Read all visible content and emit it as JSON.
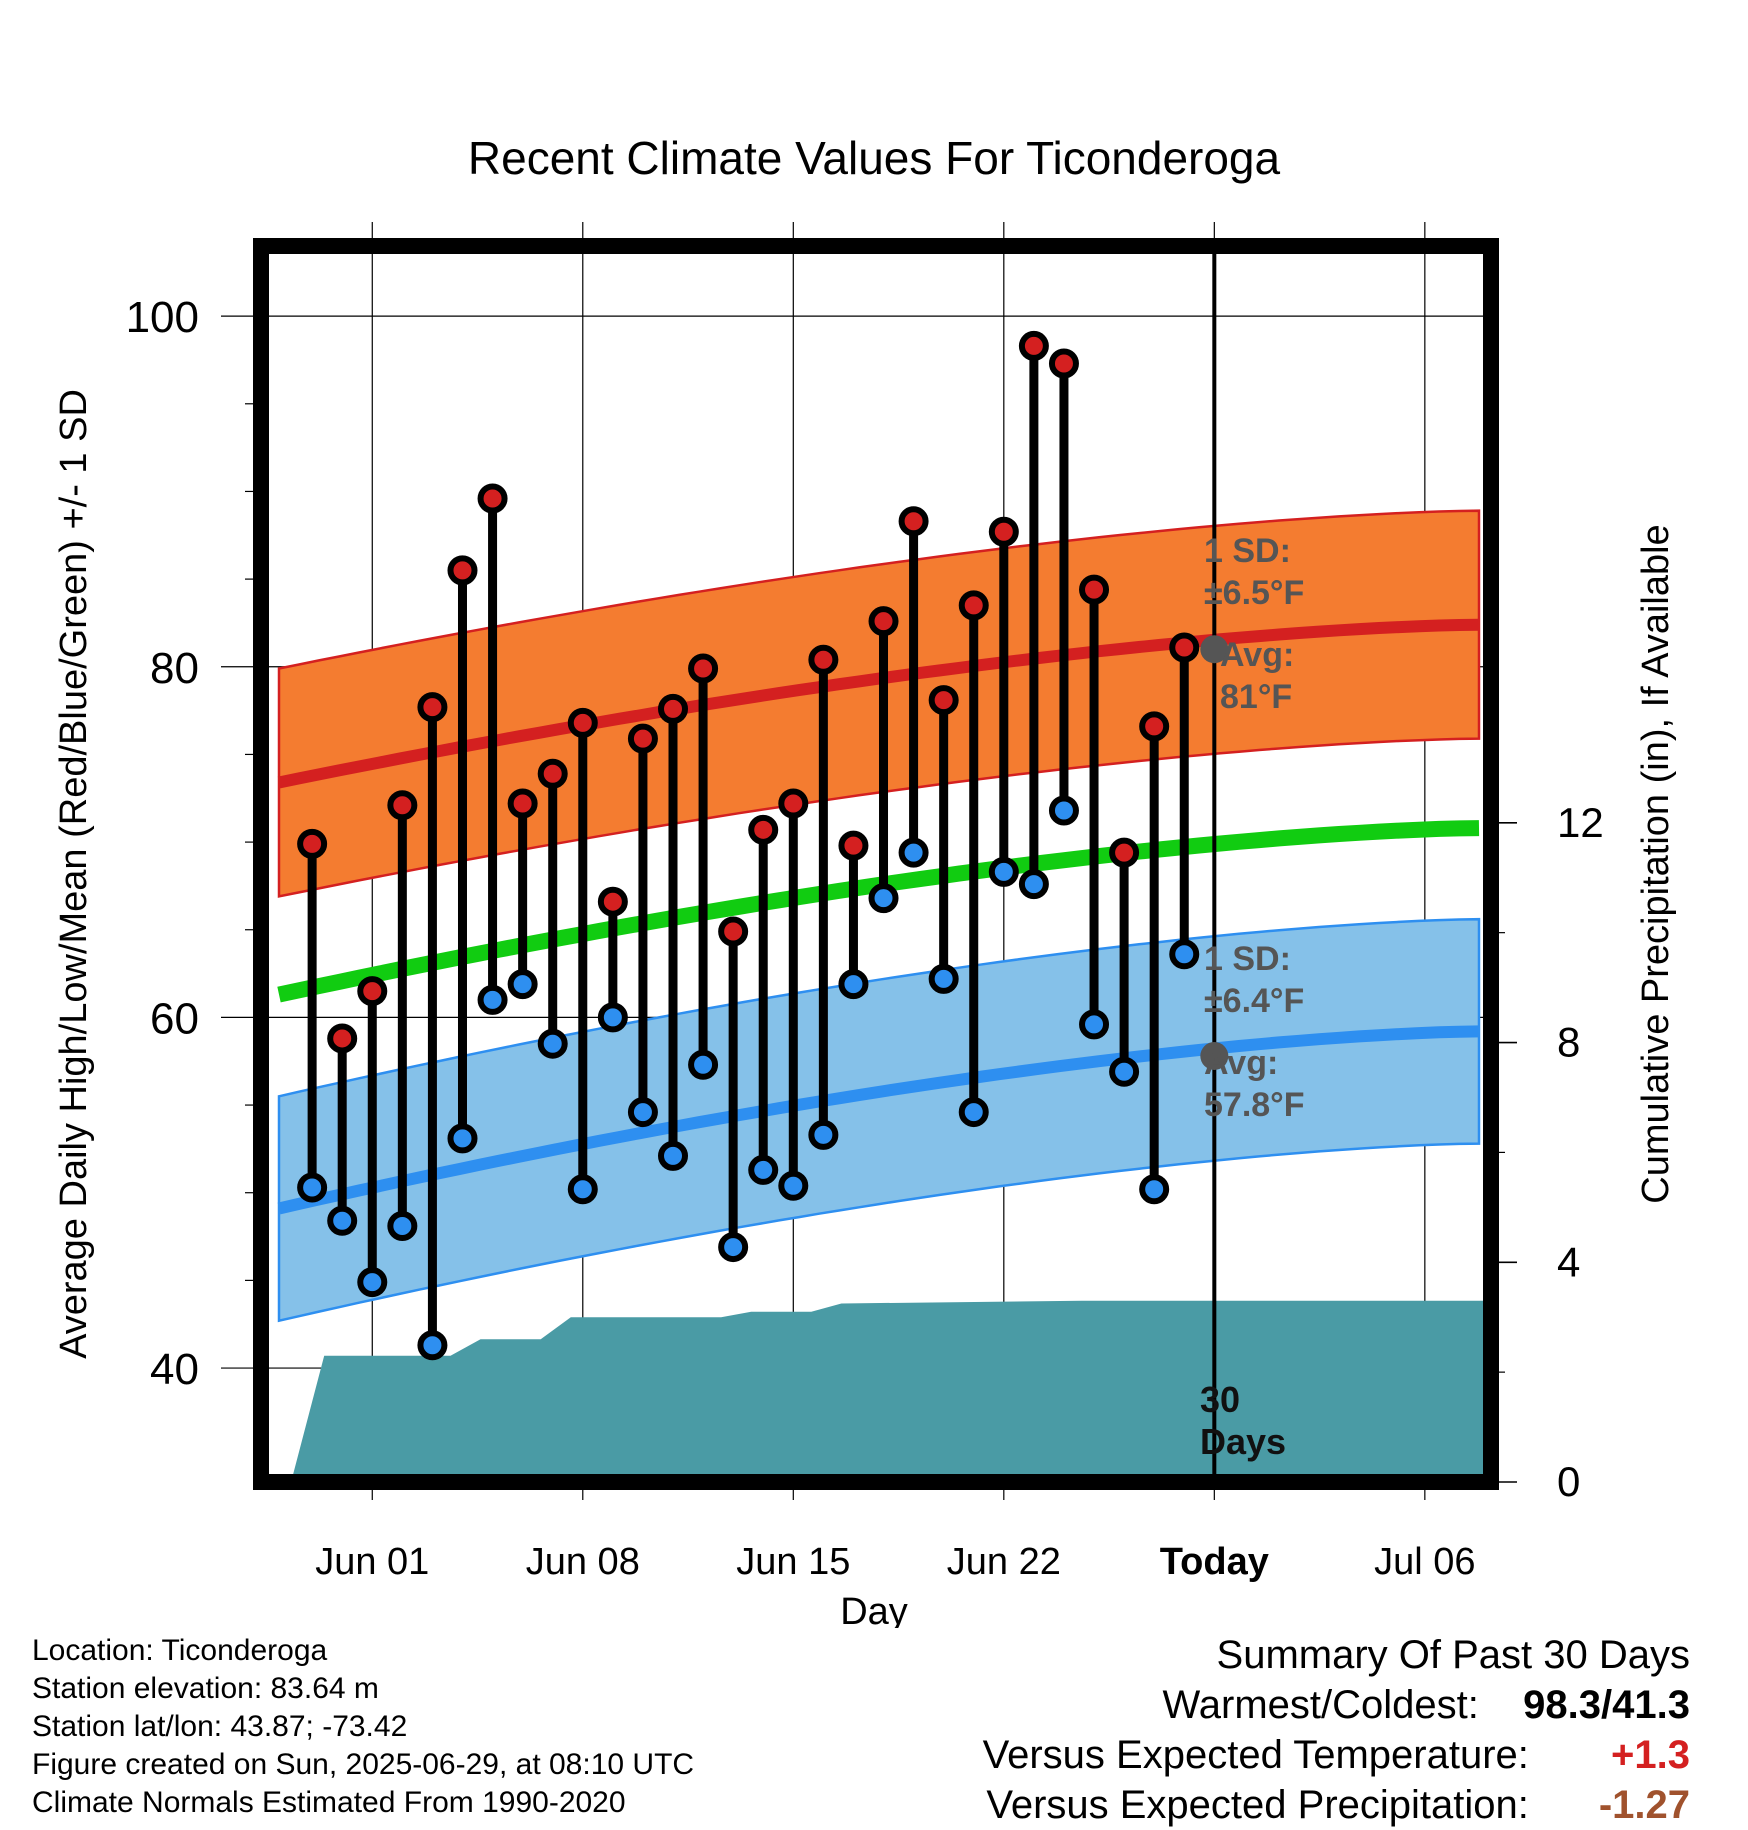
{
  "chart_data": {
    "type": "line",
    "title": "Recent Climate Values For Ticonderoga",
    "xlabel": "Day",
    "ylabel": "Average Daily High/Low/Mean (Red/Blue/Green) +/- 1 SD",
    "y2label": "Cumulative Precipitation (in), If Available",
    "ylim": [
      33.5,
      104
    ],
    "y2lim": [
      0,
      22.5
    ],
    "xlim": [
      -3.7,
      37.2
    ],
    "y_ticks": [
      100,
      80,
      60,
      40
    ],
    "y2_ticks": [
      12,
      8,
      4,
      0
    ],
    "x_tick_labels": [
      "Jun 01",
      "Jun 08",
      "Jun 15",
      "Jun 22",
      "Today",
      "Jul 06"
    ],
    "today_label": "Today",
    "grid": true,
    "days": [
      -2,
      -1,
      0,
      1,
      2,
      3,
      4,
      5,
      6,
      7,
      8,
      9,
      10,
      11,
      12,
      13,
      14,
      15,
      16,
      17,
      18,
      19,
      20,
      21,
      22,
      23,
      24,
      25,
      26,
      27
    ],
    "series": [
      {
        "name": "High",
        "color": "#d42020",
        "values": [
          69.9,
          58.8,
          61.5,
          72.1,
          77.7,
          85.5,
          89.6,
          72.2,
          73.9,
          76.8,
          66.6,
          75.9,
          77.6,
          79.9,
          64.9,
          70.7,
          72.2,
          80.4,
          69.8,
          82.6,
          88.3,
          78.1,
          83.5,
          87.7,
          98.3,
          97.3,
          84.4,
          69.4,
          76.6,
          81.1
        ]
      },
      {
        "name": "Low",
        "color": "#2e8ff0",
        "values": [
          50.3,
          48.4,
          44.9,
          48.1,
          41.3,
          53.1,
          61.0,
          61.9,
          58.5,
          50.2,
          60.0,
          54.6,
          52.1,
          57.3,
          46.9,
          51.3,
          50.4,
          53.3,
          61.9,
          66.8,
          69.4,
          62.2,
          54.6,
          68.3,
          67.6,
          71.8,
          59.6,
          56.9,
          50.2,
          63.6
        ]
      }
    ],
    "normal_high": {
      "start": 73.4,
      "end": 82.4,
      "sd": 6.5
    },
    "normal_low": {
      "start": 49.1,
      "end": 59.2,
      "sd": 6.4
    },
    "normal_mean": {
      "start": 61.3,
      "end": 70.8
    },
    "precip": {
      "color": "#4a9ba5",
      "points": [
        [
          -2.7,
          0
        ],
        [
          -1.6,
          2.3
        ],
        [
          2.6,
          2.3
        ],
        [
          3.6,
          2.6
        ],
        [
          5.6,
          2.6
        ],
        [
          6.6,
          3.0
        ],
        [
          11.6,
          3.0
        ],
        [
          12.6,
          3.1
        ],
        [
          14.6,
          3.1
        ],
        [
          15.6,
          3.25
        ],
        [
          23.6,
          3.3
        ],
        [
          37.0,
          3.3
        ]
      ]
    },
    "annotations": {
      "high_sd_line1": "1 SD:",
      "high_sd_line2": "±6.5°F",
      "high_avg_line1": "Avg:",
      "high_avg_line2": "81°F",
      "low_sd_line1": "1 SD:",
      "low_sd_line2": "±6.4°F",
      "low_avg_line1": "Avg:",
      "low_avg_line2": "57.8°F",
      "days_line1": "30",
      "days_line2": "Days"
    },
    "today_high_avg": 81,
    "today_low_avg": 57.8
  },
  "info": {
    "location": "Location: Ticonderoga",
    "elevation": "Station elevation: 83.64 m",
    "latlon": "Station lat/lon: 43.87; -73.42",
    "created": "Figure created on Sun, 2025-06-29, at 08:10 UTC",
    "normals": "Climate Normals Estimated From 1990-2020"
  },
  "summary": {
    "title": "Summary Of Past 30 Days",
    "warm_cold_label": "Warmest/Coldest:",
    "warm_cold_value": "98.3/41.3",
    "temp_label": "Versus Expected Temperature:",
    "temp_value": "+1.3",
    "temp_color": "#d42020",
    "precip_label": "Versus Expected Precipitation:",
    "precip_value": "-1.27",
    "precip_color": "#a0522d"
  }
}
